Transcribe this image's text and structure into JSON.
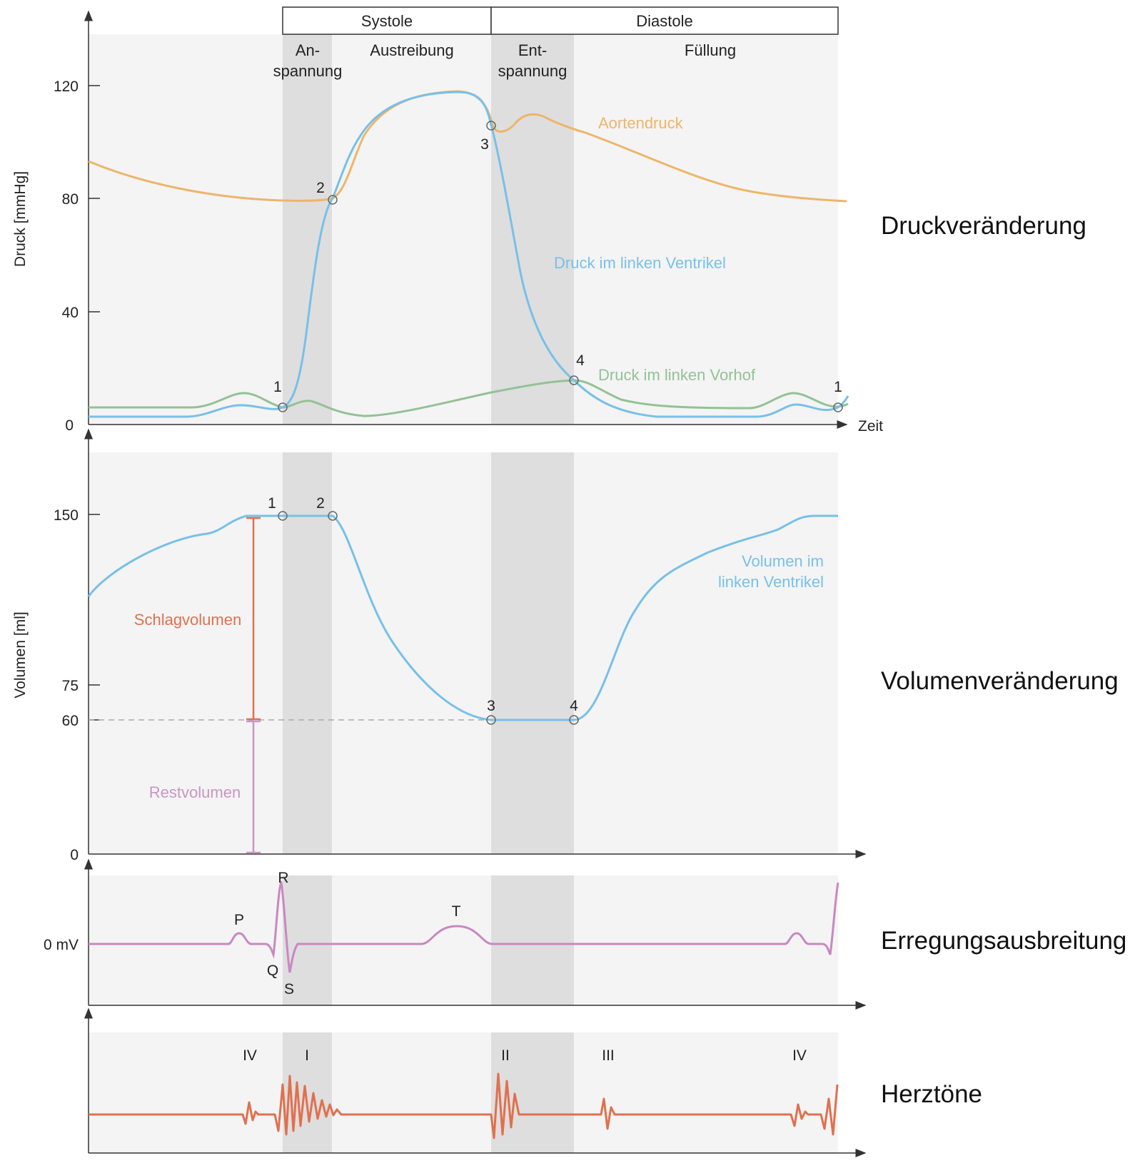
{
  "colors": {
    "aorta": "#eeb56a",
    "ventricle": "#78c0e8",
    "atrium": "#93c196",
    "stroke_volume": "#e0704e",
    "residual_volume": "#c896c2",
    "ecg": "#c888c0",
    "heart_sounds": "#e0704e",
    "panel_bg": "#f4f4f4",
    "phase_shade": "#dedede"
  },
  "header": {
    "systole": "Systole",
    "diastole": "Diastole"
  },
  "phases": {
    "anspannung_1": "An-",
    "anspannung_2": "spannung",
    "austreibung": "Austreibung",
    "entspannung_1": "Ent-",
    "entspannung_2": "spannung",
    "fuellung": "Füllung"
  },
  "pressure": {
    "title": "Druckveränderung",
    "ylabel": "Druck [mmHg]",
    "xlabel": "Zeit",
    "ticks": [
      "120",
      "80",
      "40",
      "0"
    ],
    "aorta_label": "Aortendruck",
    "ventricle_label": "Druck im linken Ventrikel",
    "atrium_label": "Druck im linken Vorhof",
    "points": [
      "1",
      "2",
      "3",
      "4",
      "1"
    ]
  },
  "volume": {
    "title": "Volumenveränderung",
    "ylabel": "Volumen [ml]",
    "ticks": [
      "150",
      "75",
      "60",
      "0"
    ],
    "curve_label_1": "Volumen im",
    "curve_label_2": "linken Ventrikel",
    "stroke_volume": "Schlagvolumen",
    "residual_volume": "Restvolumen",
    "points": [
      "1",
      "2",
      "3",
      "4"
    ]
  },
  "ecg": {
    "title": "Erregungsausbreitung",
    "baseline": "0 mV",
    "waves": [
      "P",
      "R",
      "Q",
      "S",
      "T"
    ]
  },
  "sounds": {
    "title": "Herztöne",
    "labels": [
      "IV",
      "I",
      "II",
      "III",
      "IV"
    ]
  },
  "chart_data": [
    {
      "type": "line",
      "title": "Druckveränderung",
      "ylabel": "Druck [mmHg]",
      "xlabel": "Zeit",
      "ylim": [
        0,
        140
      ],
      "yticks": [
        0,
        40,
        80,
        120
      ],
      "series": [
        {
          "name": "Aortendruck",
          "values": [
            93,
            80,
            79,
            80,
            110,
            117,
            105,
            103,
            110,
            102,
            90,
            80,
            79
          ]
        },
        {
          "name": "Druck im linken Ventrikel",
          "values": [
            3,
            3,
            7,
            6,
            80,
            110,
            117,
            105,
            30,
            16,
            3,
            3,
            10
          ]
        },
        {
          "name": "Druck im linken Vorhof",
          "values": [
            6,
            6,
            11,
            6,
            9,
            3,
            10,
            16,
            8,
            6,
            11,
            6
          ]
        }
      ]
    },
    {
      "type": "line",
      "title": "Volumenveränderung",
      "ylabel": "Volumen [ml]",
      "ylim": [
        0,
        175
      ],
      "yticks": [
        0,
        60,
        75,
        150
      ],
      "series": [
        {
          "name": "Volumen im linken Ventrikel",
          "values": [
            115,
            140,
            150,
            150,
            150,
            60,
            60,
            60,
            125,
            140,
            150
          ]
        },
        {
          "name": "Schlagvolumen",
          "values": [
            60,
            150
          ]
        },
        {
          "name": "Restvolumen",
          "values": [
            0,
            60
          ]
        }
      ]
    }
  ]
}
